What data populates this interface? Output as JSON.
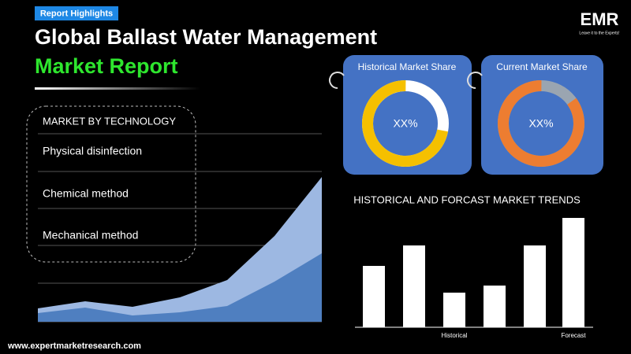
{
  "header": {
    "tag": "Report Highlights",
    "title_line1": "Global Ballast Water Management",
    "title_line2": "Market Report",
    "logo": "EMR",
    "logo_tagline": "Leave it to the Experts!"
  },
  "technology": {
    "title": "MARKET BY TECHNOLOGY",
    "items": [
      "Physical disinfection",
      "Chemical method",
      "Mechanical method"
    ]
  },
  "area_chart": {
    "type": "area",
    "series": [
      {
        "color": "#9db8e2",
        "values": [
          17,
          26,
          19,
          31,
          53,
          109,
          184
        ]
      },
      {
        "color": "#4f7fc0",
        "values": [
          11,
          18,
          8,
          12,
          20,
          51,
          87
        ]
      }
    ]
  },
  "shares": [
    {
      "title": "Historical Market Share",
      "label": "XX%",
      "value": 72,
      "color": "#f5c000",
      "rest_color": "#ffffff"
    },
    {
      "title": "Current Market Share",
      "label": "XX%",
      "value": 85,
      "color": "#ed7d31",
      "rest_color": "#9aa5b1"
    }
  ],
  "chart_data": {
    "type": "bar",
    "title": "HISTORICAL AND FORCAST MARKET TRENDS",
    "categories": [
      null,
      null,
      "Historical",
      null,
      null,
      "Forecast"
    ],
    "values": [
      78,
      104,
      44,
      53,
      104,
      139
    ],
    "color": "#ffffff"
  },
  "footer": {
    "url": "www.expertmarketresearch.com"
  }
}
